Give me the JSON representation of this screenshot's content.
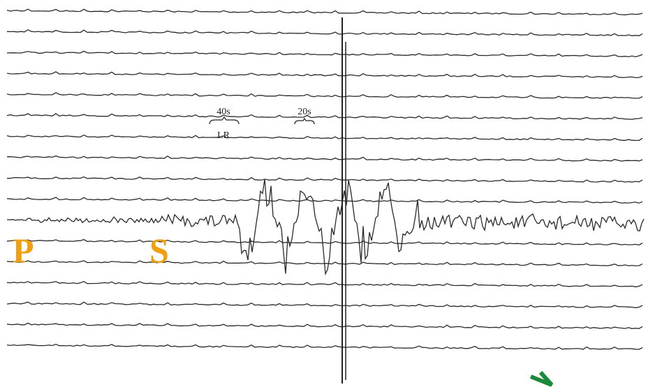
{
  "phase_labels": {
    "p_wave": "P",
    "s_wave": "S"
  },
  "annotations": [
    "40s",
    "20s",
    "LR"
  ]
}
